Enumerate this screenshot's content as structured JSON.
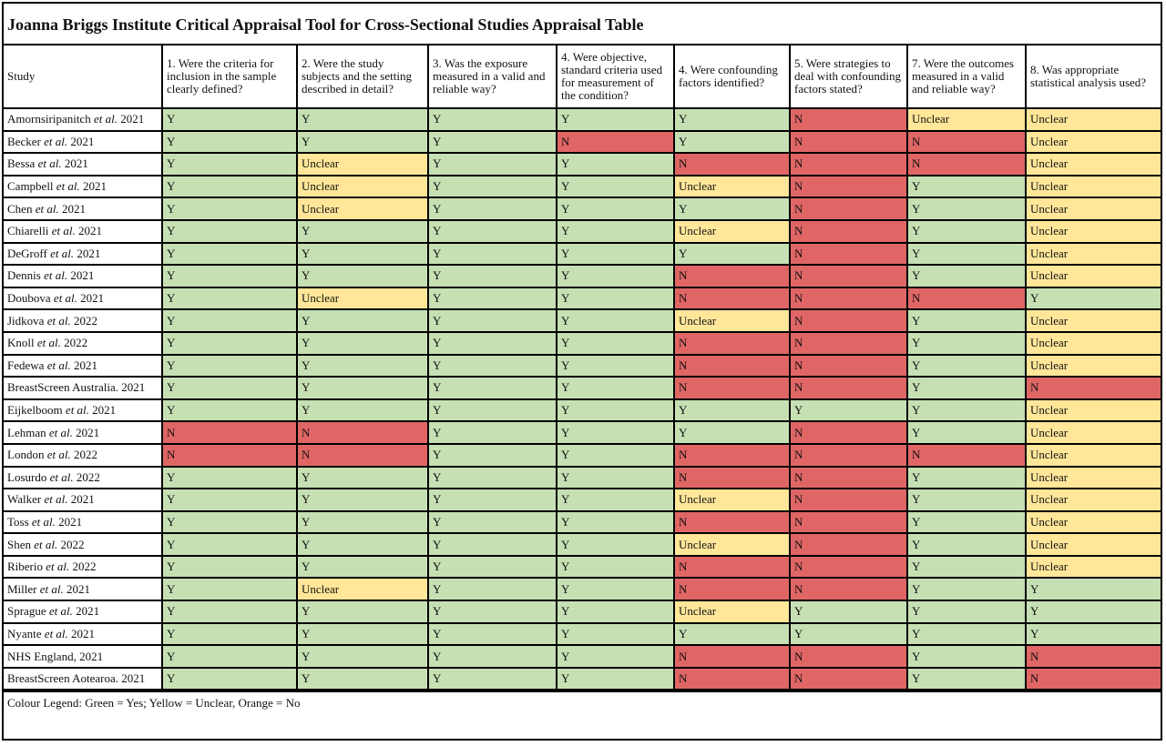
{
  "title": "Joanna Briggs Institute Critical Appraisal Tool for Cross-Sectional Studies Appraisal Table",
  "colors": {
    "Y": "#c6e0b4",
    "Unclear": "#ffe699",
    "N": "#e06666"
  },
  "headers": [
    "Study",
    "1. Were the criteria for inclusion in the sample clearly defined?",
    "2. Were the study subjects and the setting described in detail?",
    "3. Was the exposure measured in a valid and reliable way?",
    "4. Were objective, standard criteria used for measurement of the condition?",
    "4. Were confounding factors identified?",
    "5. Were strategies to deal with confounding factors stated?",
    "7. Were the outcomes measured in a valid and reliable way?",
    "8. Was appropriate statistical analysis used?"
  ],
  "rows": [
    {
      "author": "Amornsiripanitch",
      "etal": true,
      "year": "2021",
      "values": [
        "Y",
        "Y",
        "Y",
        "Y",
        "Y",
        "N",
        "Unclear",
        "Unclear"
      ]
    },
    {
      "author": "Becker",
      "etal": true,
      "year": "2021",
      "values": [
        "Y",
        "Y",
        "Y",
        "N",
        "Y",
        "N",
        "N",
        "Unclear"
      ]
    },
    {
      "author": "Bessa",
      "etal": true,
      "year": "2021",
      "values": [
        "Y",
        "Unclear",
        "Y",
        "Y",
        "N",
        "N",
        "N",
        "Unclear"
      ]
    },
    {
      "author": "Campbell",
      "etal": true,
      "year": "2021",
      "values": [
        "Y",
        "Unclear",
        "Y",
        "Y",
        "Unclear",
        "N",
        "Y",
        "Unclear"
      ]
    },
    {
      "author": "Chen",
      "etal": true,
      "year": "2021",
      "values": [
        "Y",
        "Unclear",
        "Y",
        "Y",
        "Y",
        "N",
        "Y",
        "Unclear"
      ]
    },
    {
      "author": "Chiarelli",
      "etal": true,
      "year": "2021",
      "values": [
        "Y",
        "Y",
        "Y",
        "Y",
        "Unclear",
        "N",
        "Y",
        "Unclear"
      ]
    },
    {
      "author": "DeGroff",
      "etal": true,
      "year": "2021",
      "values": [
        "Y",
        "Y",
        "Y",
        "Y",
        "Y",
        "N",
        "Y",
        "Unclear"
      ]
    },
    {
      "author": "Dennis",
      "etal": true,
      "year": "2021",
      "values": [
        "Y",
        "Y",
        "Y",
        "Y",
        "N",
        "N",
        "Y",
        "Unclear"
      ]
    },
    {
      "author": "Doubova",
      "etal": true,
      "year": "2021",
      "values": [
        "Y",
        "Unclear",
        "Y",
        "Y",
        "N",
        "N",
        "N",
        "Y"
      ]
    },
    {
      "author": "Jidkova",
      "etal": true,
      "year": "2022",
      "values": [
        "Y",
        "Y",
        "Y",
        "Y",
        "Unclear",
        "N",
        "Y",
        "Unclear"
      ]
    },
    {
      "author": "Knoll",
      "etal": true,
      "year": "2022",
      "values": [
        "Y",
        "Y",
        "Y",
        "Y",
        "N",
        "N",
        "Y",
        "Unclear"
      ]
    },
    {
      "author": "Fedewa",
      "etal": true,
      "year": "2021",
      "values": [
        "Y",
        "Y",
        "Y",
        "Y",
        "N",
        "N",
        "Y",
        "Unclear"
      ]
    },
    {
      "author": "BreastScreen Australia.",
      "etal": false,
      "year": "2021",
      "values": [
        "Y",
        "Y",
        "Y",
        "Y",
        "N",
        "N",
        "Y",
        "N"
      ]
    },
    {
      "author": "Eijkelboom",
      "etal": true,
      "year": "2021",
      "values": [
        "Y",
        "Y",
        "Y",
        "Y",
        "Y",
        "Y",
        "Y",
        "Unclear"
      ]
    },
    {
      "author": "Lehman",
      "etal": true,
      "year": "2021",
      "values": [
        "N",
        "N",
        "Y",
        "Y",
        "Y",
        "N",
        "Y",
        "Unclear"
      ]
    },
    {
      "author": "London",
      "etal": true,
      "year": "2022",
      "values": [
        "N",
        "N",
        "Y",
        "Y",
        "N",
        "N",
        "N",
        "Unclear"
      ]
    },
    {
      "author": "Losurdo",
      "etal": true,
      "year": "2022",
      "values": [
        "Y",
        "Y",
        "Y",
        "Y",
        "N",
        "N",
        "Y",
        "Unclear"
      ]
    },
    {
      "author": "Walker",
      "etal": true,
      "year": "2021",
      "values": [
        "Y",
        "Y",
        "Y",
        "Y",
        "Unclear",
        "N",
        "Y",
        "Unclear"
      ]
    },
    {
      "author": "Toss",
      "etal": true,
      "year": "2021",
      "values": [
        "Y",
        "Y",
        "Y",
        "Y",
        "N",
        "N",
        "Y",
        "Unclear"
      ]
    },
    {
      "author": "Shen",
      "etal": true,
      "year": "2022",
      "values": [
        "Y",
        "Y",
        "Y",
        "Y",
        "Unclear",
        "N",
        "Y",
        "Unclear"
      ]
    },
    {
      "author": "Riberio",
      "etal": true,
      "year": "2022",
      "values": [
        "Y",
        "Y",
        "Y",
        "Y",
        "N",
        "N",
        "Y",
        "Unclear"
      ]
    },
    {
      "author": "Miller",
      "etal": true,
      "year": "2021",
      "values": [
        "Y",
        "Unclear",
        "Y",
        "Y",
        "N",
        "N",
        "Y",
        "Y"
      ]
    },
    {
      "author": "Sprague",
      "etal": true,
      "year": "2021",
      "values": [
        "Y",
        "Y",
        "Y",
        "Y",
        "Unclear",
        "Y",
        "Y",
        "Y"
      ]
    },
    {
      "author": "Nyante",
      "etal": true,
      "year": "2021",
      "values": [
        "Y",
        "Y",
        "Y",
        "Y",
        "Y",
        "Y",
        "Y",
        "Y"
      ]
    },
    {
      "author": "NHS England,",
      "etal": false,
      "year": "2021",
      "values": [
        "Y",
        "Y",
        "Y",
        "Y",
        "N",
        "N",
        "Y",
        "N"
      ]
    },
    {
      "author": "BreastScreen Aotearoa.",
      "etal": false,
      "year": "2021",
      "values": [
        "Y",
        "Y",
        "Y",
        "Y",
        "N",
        "N",
        "Y",
        "N"
      ]
    }
  ],
  "etal_text": "et al.",
  "legend": "Colour Legend: Green = Yes; Yellow = Unclear, Orange = No"
}
